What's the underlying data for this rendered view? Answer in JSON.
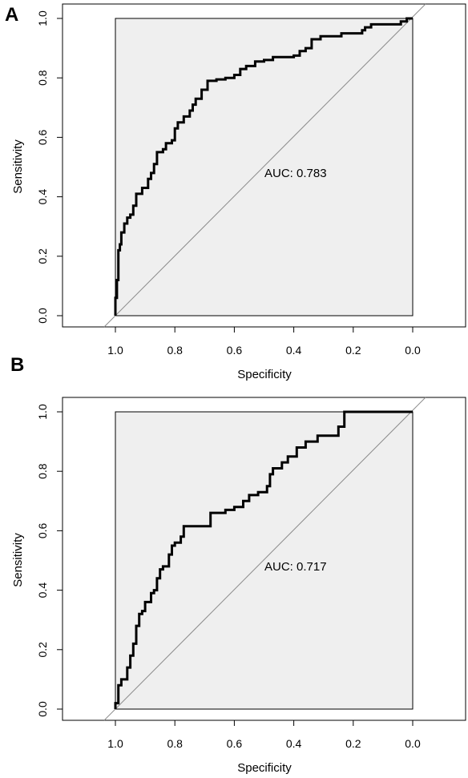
{
  "chart_data": [
    {
      "panel": "A",
      "type": "line",
      "xlabel": "Specificity",
      "ylabel": "Sensitivity",
      "x_ticks": [
        "1.0",
        "0.8",
        "0.6",
        "0.4",
        "0.2",
        "0.0"
      ],
      "y_ticks": [
        "0.0",
        "0.2",
        "0.4",
        "0.6",
        "0.8",
        "1.0"
      ],
      "xlim": [
        1.2,
        -0.2
      ],
      "ylim": [
        0,
        1
      ],
      "x_reversed": true,
      "auc_text": "AUC: 0.783",
      "reference_line": "diagonal",
      "series": [
        {
          "specificity": [
            1.0,
            1.0,
            0.995,
            0.995,
            0.99,
            0.99,
            0.985,
            0.985,
            0.98,
            0.98,
            0.97,
            0.97,
            0.96,
            0.96,
            0.95,
            0.95,
            0.94,
            0.94,
            0.93,
            0.93,
            0.91,
            0.91,
            0.89,
            0.89,
            0.88,
            0.88,
            0.87,
            0.87,
            0.86,
            0.86,
            0.84,
            0.84,
            0.83,
            0.83,
            0.81,
            0.81,
            0.8,
            0.8,
            0.79,
            0.79,
            0.77,
            0.77,
            0.75,
            0.75,
            0.74,
            0.74,
            0.73,
            0.73,
            0.71,
            0.71,
            0.69,
            0.69,
            0.66,
            0.66,
            0.63,
            0.63,
            0.6,
            0.6,
            0.58,
            0.58,
            0.56,
            0.56,
            0.53,
            0.53,
            0.5,
            0.5,
            0.47,
            0.47,
            0.4,
            0.4,
            0.38,
            0.38,
            0.36,
            0.36,
            0.34,
            0.34,
            0.31,
            0.31,
            0.24,
            0.24,
            0.17,
            0.17,
            0.16,
            0.16,
            0.14,
            0.14,
            0.04,
            0.04,
            0.02,
            0.02,
            0.0
          ],
          "sensitivity": [
            0.0,
            0.06,
            0.06,
            0.12,
            0.12,
            0.22,
            0.22,
            0.24,
            0.24,
            0.28,
            0.28,
            0.31,
            0.31,
            0.33,
            0.33,
            0.34,
            0.34,
            0.37,
            0.37,
            0.41,
            0.41,
            0.43,
            0.43,
            0.46,
            0.46,
            0.48,
            0.48,
            0.51,
            0.51,
            0.55,
            0.55,
            0.56,
            0.56,
            0.58,
            0.58,
            0.59,
            0.59,
            0.63,
            0.63,
            0.65,
            0.65,
            0.67,
            0.67,
            0.69,
            0.69,
            0.71,
            0.71,
            0.73,
            0.73,
            0.76,
            0.76,
            0.79,
            0.79,
            0.795,
            0.795,
            0.8,
            0.8,
            0.81,
            0.81,
            0.83,
            0.83,
            0.84,
            0.84,
            0.855,
            0.855,
            0.86,
            0.86,
            0.87,
            0.87,
            0.875,
            0.875,
            0.89,
            0.89,
            0.9,
            0.9,
            0.93,
            0.93,
            0.94,
            0.94,
            0.95,
            0.95,
            0.96,
            0.96,
            0.97,
            0.97,
            0.98,
            0.98,
            0.99,
            0.99,
            1.0,
            1.0
          ]
        }
      ]
    },
    {
      "panel": "B",
      "type": "line",
      "xlabel": "Specificity",
      "ylabel": "Sensitivity",
      "x_ticks": [
        "1.0",
        "0.8",
        "0.6",
        "0.4",
        "0.2",
        "0.0"
      ],
      "y_ticks": [
        "0.0",
        "0.2",
        "0.4",
        "0.6",
        "0.8",
        "1.0"
      ],
      "xlim": [
        1.2,
        -0.2
      ],
      "ylim": [
        0,
        1
      ],
      "x_reversed": true,
      "auc_text": "AUC: 0.717",
      "reference_line": "diagonal",
      "series": [
        {
          "specificity": [
            1.0,
            1.0,
            0.99,
            0.99,
            0.98,
            0.98,
            0.96,
            0.96,
            0.95,
            0.95,
            0.94,
            0.94,
            0.93,
            0.93,
            0.92,
            0.92,
            0.91,
            0.91,
            0.9,
            0.9,
            0.88,
            0.88,
            0.87,
            0.87,
            0.86,
            0.86,
            0.85,
            0.85,
            0.84,
            0.84,
            0.82,
            0.82,
            0.81,
            0.81,
            0.8,
            0.8,
            0.78,
            0.78,
            0.77,
            0.77,
            0.68,
            0.68,
            0.63,
            0.63,
            0.6,
            0.6,
            0.57,
            0.57,
            0.55,
            0.55,
            0.52,
            0.52,
            0.49,
            0.49,
            0.48,
            0.48,
            0.47,
            0.47,
            0.44,
            0.44,
            0.42,
            0.42,
            0.39,
            0.39,
            0.36,
            0.36,
            0.32,
            0.32,
            0.25,
            0.25,
            0.23,
            0.23,
            0.0
          ],
          "sensitivity": [
            0.0,
            0.02,
            0.02,
            0.08,
            0.08,
            0.1,
            0.1,
            0.14,
            0.14,
            0.18,
            0.18,
            0.22,
            0.22,
            0.28,
            0.28,
            0.32,
            0.32,
            0.33,
            0.33,
            0.36,
            0.36,
            0.39,
            0.39,
            0.4,
            0.4,
            0.44,
            0.44,
            0.47,
            0.47,
            0.48,
            0.48,
            0.52,
            0.52,
            0.55,
            0.55,
            0.56,
            0.56,
            0.58,
            0.58,
            0.615,
            0.615,
            0.66,
            0.66,
            0.67,
            0.67,
            0.68,
            0.68,
            0.7,
            0.7,
            0.72,
            0.72,
            0.73,
            0.73,
            0.75,
            0.75,
            0.79,
            0.79,
            0.81,
            0.81,
            0.83,
            0.83,
            0.85,
            0.85,
            0.88,
            0.88,
            0.9,
            0.9,
            0.92,
            0.92,
            0.95,
            0.95,
            1.0,
            1.0
          ]
        }
      ]
    }
  ]
}
